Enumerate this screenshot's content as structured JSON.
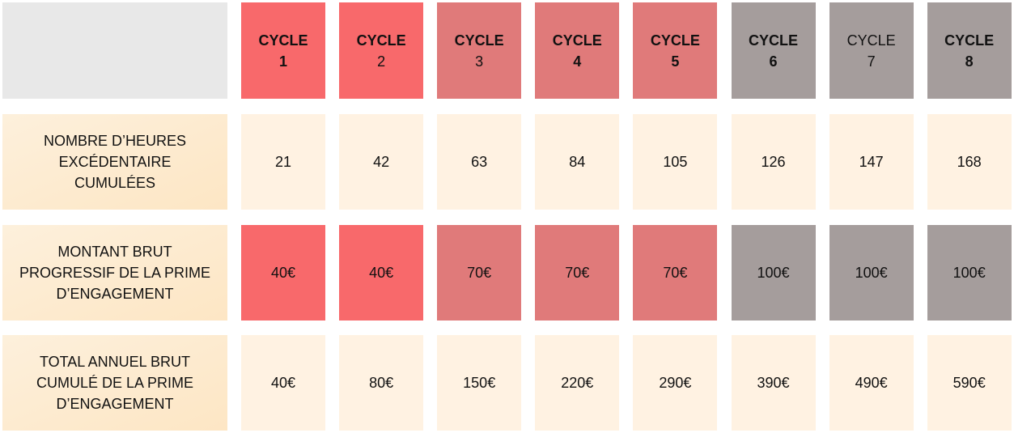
{
  "header": {
    "cycles": [
      {
        "label": "CYCLE",
        "number": "1",
        "label_bold": true,
        "number_bold": true,
        "color": "#f8696b"
      },
      {
        "label": "CYCLE",
        "number": "2",
        "label_bold": true,
        "number_bold": false,
        "color": "#f8696b"
      },
      {
        "label": "CYCLE",
        "number": "3",
        "label_bold": true,
        "number_bold": false,
        "color": "#e07a7a"
      },
      {
        "label": "CYCLE",
        "number": "4",
        "label_bold": true,
        "number_bold": true,
        "color": "#e07a7a"
      },
      {
        "label": "CYCLE",
        "number": "5",
        "label_bold": true,
        "number_bold": true,
        "color": "#e07a7a"
      },
      {
        "label": "CYCLE",
        "number": "6",
        "label_bold": true,
        "number_bold": true,
        "color": "#a59d9c"
      },
      {
        "label": "CYCLE",
        "number": "7",
        "label_bold": false,
        "number_bold": false,
        "color": "#a59d9c"
      },
      {
        "label": "CYCLE",
        "number": "8",
        "label_bold": true,
        "number_bold": true,
        "color": "#a59d9c"
      }
    ]
  },
  "table": {
    "rows": [
      {
        "label": [
          "NOMBRE D’HEURES",
          "EXCÉDENTAIRE",
          "CUMULÉES"
        ],
        "colored": false,
        "cells": [
          "21",
          "42",
          "63",
          "84",
          "105",
          "126",
          "147",
          "168"
        ]
      },
      {
        "label": [
          "MONTANT BRUT",
          "PROGRESSIF DE LA PRIME",
          "D’ENGAGEMENT"
        ],
        "colored": true,
        "cells": [
          "40€",
          "40€",
          "70€",
          "70€",
          "70€",
          "100€",
          "100€",
          "100€"
        ]
      },
      {
        "label": [
          "TOTAL ANNUEL BRUT",
          "CUMULÉ DE LA PRIME",
          "D’ENGAGEMENT"
        ],
        "colored": false,
        "cells": [
          "40€",
          "80€",
          "150€",
          "220€",
          "290€",
          "390€",
          "490€",
          "590€"
        ]
      }
    ]
  }
}
